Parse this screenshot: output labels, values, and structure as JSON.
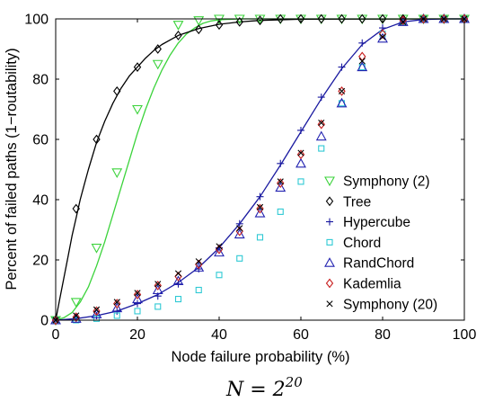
{
  "chart_data": {
    "type": "scatter",
    "xlabel": "Node failure probability (%)",
    "ylabel": "Percent of failed paths (1−routability)",
    "caption_base": "N = 2",
    "caption_exp": "20",
    "xlim": [
      0,
      100
    ],
    "ylim": [
      0,
      100
    ],
    "xticks": [
      0,
      20,
      40,
      60,
      80,
      100
    ],
    "yticks": [
      0,
      20,
      40,
      60,
      80,
      100
    ],
    "grid": false,
    "legend_position": "lower-right",
    "x": [
      0,
      5,
      10,
      15,
      20,
      25,
      30,
      35,
      40,
      45,
      50,
      55,
      60,
      65,
      70,
      75,
      80,
      85,
      90,
      95,
      100
    ],
    "series": [
      {
        "name": "Symphony (2)",
        "marker": "triangle-down",
        "color": "#3bd33b",
        "values": [
          0,
          6,
          24,
          49,
          70,
          85,
          98,
          99.5,
          100,
          100,
          100,
          100,
          100,
          100,
          100,
          100,
          100,
          100,
          100,
          100,
          100
        ],
        "curve": [
          [
            0,
            0
          ],
          [
            2,
            0.8
          ],
          [
            4,
            2.5
          ],
          [
            6,
            6
          ],
          [
            8,
            11
          ],
          [
            10,
            18
          ],
          [
            12,
            26
          ],
          [
            14,
            35
          ],
          [
            16,
            44
          ],
          [
            18,
            53
          ],
          [
            20,
            62
          ],
          [
            22,
            70
          ],
          [
            24,
            77
          ],
          [
            26,
            83
          ],
          [
            28,
            88
          ],
          [
            30,
            92
          ],
          [
            32,
            95
          ],
          [
            34,
            97
          ],
          [
            36,
            98.5
          ],
          [
            38,
            99.3
          ],
          [
            40,
            99.7
          ],
          [
            45,
            100
          ],
          [
            100,
            100
          ]
        ]
      },
      {
        "name": "Tree",
        "marker": "diamond",
        "color": "#000000",
        "values": [
          0,
          37,
          60,
          76,
          84,
          90,
          94.5,
          96.5,
          98,
          99,
          99.5,
          100,
          100,
          100,
          100,
          100,
          100,
          100,
          100,
          100,
          100
        ],
        "curve": [
          [
            0,
            0
          ],
          [
            1,
            7
          ],
          [
            2,
            14
          ],
          [
            3,
            21
          ],
          [
            4,
            28
          ],
          [
            5,
            34
          ],
          [
            6,
            40
          ],
          [
            7,
            45
          ],
          [
            8,
            50
          ],
          [
            10,
            59
          ],
          [
            12,
            66
          ],
          [
            14,
            72
          ],
          [
            16,
            77
          ],
          [
            18,
            81
          ],
          [
            20,
            84
          ],
          [
            22,
            87
          ],
          [
            24,
            89.5
          ],
          [
            26,
            91.5
          ],
          [
            28,
            93
          ],
          [
            30,
            94.5
          ],
          [
            35,
            96.8
          ],
          [
            40,
            98.2
          ],
          [
            45,
            99
          ],
          [
            50,
            99.5
          ],
          [
            60,
            99.9
          ],
          [
            100,
            100
          ]
        ]
      },
      {
        "name": "Hypercube",
        "marker": "plus",
        "color": "#1a1aa0",
        "values": [
          0,
          0.5,
          1.5,
          3,
          5.5,
          8,
          12,
          17,
          24,
          32,
          41,
          52,
          63,
          74,
          84,
          92,
          97,
          99,
          100,
          100,
          100
        ],
        "curve": [
          [
            0,
            0
          ],
          [
            5,
            0.5
          ],
          [
            10,
            1.5
          ],
          [
            15,
            3
          ],
          [
            20,
            5.5
          ],
          [
            25,
            8.5
          ],
          [
            30,
            12.5
          ],
          [
            35,
            17.5
          ],
          [
            40,
            24
          ],
          [
            45,
            32
          ],
          [
            50,
            41
          ],
          [
            55,
            51.5
          ],
          [
            60,
            62.5
          ],
          [
            65,
            73.5
          ],
          [
            70,
            83.5
          ],
          [
            75,
            91.5
          ],
          [
            80,
            96.5
          ],
          [
            85,
            99
          ],
          [
            90,
            99.8
          ],
          [
            95,
            100
          ],
          [
            100,
            100
          ]
        ]
      },
      {
        "name": "Chord",
        "marker": "square",
        "color": "#2ec9d4",
        "values": [
          0,
          0,
          0.5,
          1.5,
          3,
          4.5,
          7,
          10,
          15,
          20.5,
          27.5,
          36,
          46,
          57,
          72,
          84,
          95,
          99,
          100,
          100,
          100
        ]
      },
      {
        "name": "RandChord",
        "marker": "triangle-up",
        "color": "#2222b0",
        "values": [
          0,
          0.5,
          2,
          4,
          7,
          10,
          13,
          17.5,
          22.5,
          28.5,
          35.5,
          44,
          52,
          61,
          72,
          84,
          93.5,
          99,
          100,
          100,
          100
        ]
      },
      {
        "name": "Kademlia",
        "marker": "diamond",
        "color": "#c81e1e",
        "values": [
          0,
          1,
          3,
          5.5,
          8.5,
          11.5,
          14.5,
          18.5,
          23.5,
          29.5,
          37,
          45.5,
          55,
          65,
          76,
          87.5,
          95,
          99.5,
          100,
          100,
          100
        ]
      },
      {
        "name": "Symphony (20)",
        "marker": "x",
        "color": "#000000",
        "values": [
          0,
          1.5,
          3.5,
          6,
          9,
          12,
          15.5,
          19.5,
          24.5,
          30.5,
          37.5,
          46,
          55.5,
          65.5,
          76,
          86,
          94,
          99,
          100,
          100,
          100
        ]
      }
    ]
  }
}
